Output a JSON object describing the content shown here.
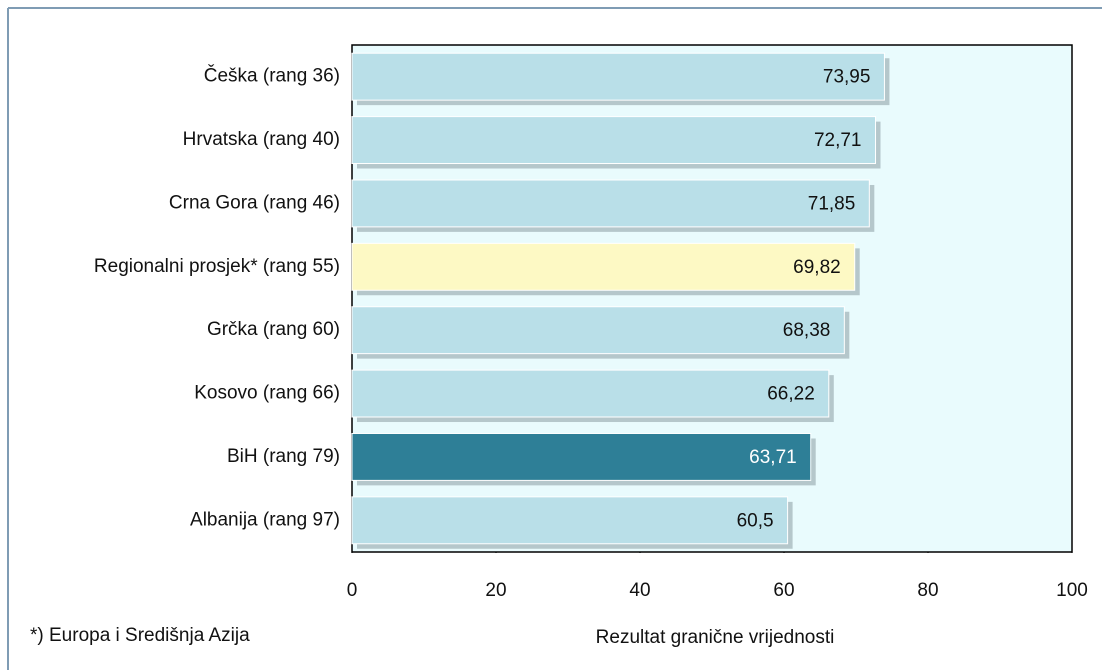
{
  "chart_data": {
    "type": "hbar",
    "categories": [
      "Češka (rang 36)",
      "Hrvatska (rang 40)",
      "Crna Gora (rang 46)",
      "Regionalni prosjek* (rang 55)",
      "Grčka (rang 60)",
      "Kosovo (rang 66)",
      "BiH (rang 79)",
      "Albanija (rang 97)"
    ],
    "values": [
      73.95,
      72.71,
      71.85,
      69.82,
      68.38,
      66.22,
      63.71,
      60.5
    ],
    "value_labels": [
      "73,95",
      "72,71",
      "71,85",
      "69,82",
      "68,38",
      "66,22",
      "63,71",
      "60,5"
    ],
    "colors": [
      "#b9dfe8",
      "#b9dfe8",
      "#b9dfe8",
      "#fdf9c4",
      "#b9dfe8",
      "#b9dfe8",
      "#2e7f97",
      "#b9dfe8"
    ],
    "xlim": [
      0,
      100
    ],
    "xticks": [
      0,
      20,
      40,
      60,
      80,
      100
    ],
    "xlabel": "Rezultat granične vrijednosti",
    "footnote": "*) Europa i Središnja Azija"
  }
}
